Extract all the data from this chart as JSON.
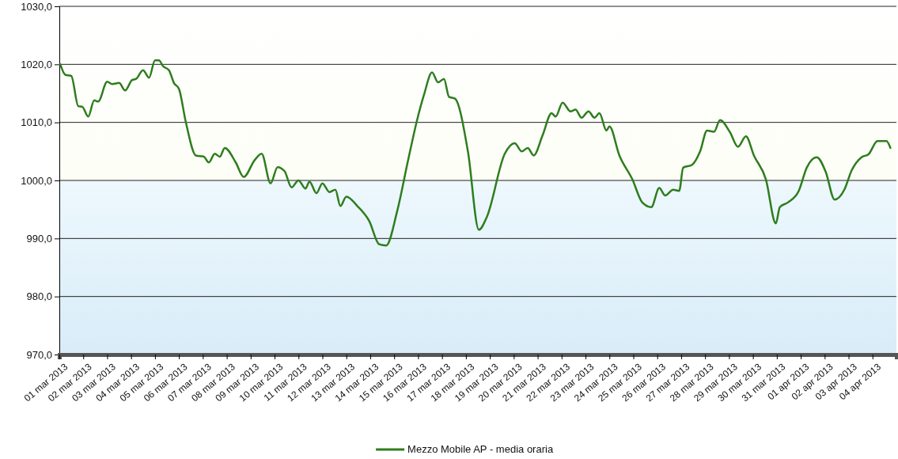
{
  "chart_data": {
    "type": "line",
    "legend": "bottom",
    "grid": "y",
    "xlim": [
      "2013-03-01T00:00",
      "2013-04-05T00:00"
    ],
    "ylim": [
      970,
      1030
    ],
    "yticks": [
      {
        "value": 970,
        "label": "970,0"
      },
      {
        "value": 980,
        "label": "980,0"
      },
      {
        "value": 990,
        "label": "990,0"
      },
      {
        "value": 1000,
        "label": "1000,0"
      },
      {
        "value": 1010,
        "label": "1010,0"
      },
      {
        "value": 1020,
        "label": "1020,0"
      },
      {
        "value": 1030,
        "label": "1030,0"
      }
    ],
    "xticks": [
      {
        "value": "2013-03-01",
        "label": "01 mar 2013"
      },
      {
        "value": "2013-03-02",
        "label": "02 mar 2013"
      },
      {
        "value": "2013-03-03",
        "label": "03 mar 2013"
      },
      {
        "value": "2013-03-04",
        "label": "04 mar 2013"
      },
      {
        "value": "2013-03-05",
        "label": "05 mar 2013"
      },
      {
        "value": "2013-03-06",
        "label": "06 mar 2013"
      },
      {
        "value": "2013-03-07",
        "label": "07 mar 2013"
      },
      {
        "value": "2013-03-08",
        "label": "08 mar 2013"
      },
      {
        "value": "2013-03-09",
        "label": "09 mar 2013"
      },
      {
        "value": "2013-03-10",
        "label": "10 mar 2013"
      },
      {
        "value": "2013-03-11",
        "label": "11 mar 2013"
      },
      {
        "value": "2013-03-12",
        "label": "12 mar 2013"
      },
      {
        "value": "2013-03-13",
        "label": "13 mar 2013"
      },
      {
        "value": "2013-03-14",
        "label": "14 mar 2013"
      },
      {
        "value": "2013-03-15",
        "label": "15 mar 2013"
      },
      {
        "value": "2013-03-16",
        "label": "16 mar 2013"
      },
      {
        "value": "2013-03-17",
        "label": "17 mar 2013"
      },
      {
        "value": "2013-03-18",
        "label": "18 mar 2013"
      },
      {
        "value": "2013-03-19",
        "label": "19 mar 2013"
      },
      {
        "value": "2013-03-20",
        "label": "20 mar 2013"
      },
      {
        "value": "2013-03-21",
        "label": "21 mar 2013"
      },
      {
        "value": "2013-03-22",
        "label": "22 mar 2013"
      },
      {
        "value": "2013-03-23",
        "label": "23 mar 2013"
      },
      {
        "value": "2013-03-24",
        "label": "24 mar 2013"
      },
      {
        "value": "2013-03-25",
        "label": "25 mar 2013"
      },
      {
        "value": "2013-03-26",
        "label": "26 mar 2013"
      },
      {
        "value": "2013-03-27",
        "label": "27 mar 2013"
      },
      {
        "value": "2013-03-28",
        "label": "28 mar 2013"
      },
      {
        "value": "2013-03-29",
        "label": "29 mar 2013"
      },
      {
        "value": "2013-03-30",
        "label": "30 mar 2013"
      },
      {
        "value": "2013-03-31",
        "label": "31 mar 2013"
      },
      {
        "value": "2013-04-01",
        "label": "01 apr 2013"
      },
      {
        "value": "2013-04-02",
        "label": "02 apr 2013"
      },
      {
        "value": "2013-04-03",
        "label": "03 apr 2013"
      },
      {
        "value": "2013-04-04",
        "label": "04 apr 2013"
      }
    ],
    "series": [
      {
        "name": "Mezzo Mobile AP - media oraria",
        "color": "#2e7d1e",
        "x": [
          "2013-03-01T01:00",
          "2013-03-01T06:00",
          "2013-03-01T12:00",
          "2013-03-01T19:00",
          "2013-03-01T23:00",
          "2013-03-02T05:00",
          "2013-03-02T11:00",
          "2013-03-02T15:00",
          "2013-03-03T00:00",
          "2013-03-03T05:00",
          "2013-03-03T12:00",
          "2013-03-03T18:00",
          "2013-03-04T01:00",
          "2013-03-04T05:00",
          "2013-03-04T12:00",
          "2013-03-04T18:00",
          "2013-03-05T00:00",
          "2013-03-05T04:00",
          "2013-03-05T08:00",
          "2013-03-05T14:00",
          "2013-03-05T19:00",
          "2013-03-06T00:00",
          "2013-03-06T07:00",
          "2013-03-06T17:00",
          "2013-03-07T01:00",
          "2013-03-07T06:00",
          "2013-03-07T12:00",
          "2013-03-07T17:00",
          "2013-03-07T22:00",
          "2013-03-08T09:00",
          "2013-03-08T17:00",
          "2013-03-09T04:00",
          "2013-03-09T11:00",
          "2013-03-09T20:00",
          "2013-03-10T03:00",
          "2013-03-10T10:00",
          "2013-03-10T17:00",
          "2013-03-11T00:00",
          "2013-03-11T07:00",
          "2013-03-11T11:00",
          "2013-03-11T18:00",
          "2013-03-12T00:00",
          "2013-03-12T07:00",
          "2013-03-12T13:00",
          "2013-03-12T18:00",
          "2013-03-13T00:00",
          "2013-03-13T11:00",
          "2013-03-13T23:00",
          "2013-03-14T09:00",
          "2013-03-14T16:00",
          "2013-03-15T03:00",
          "2013-03-15T14:00",
          "2013-03-15T23:00",
          "2013-03-16T06:00",
          "2013-03-16T14:00",
          "2013-03-16T20:00",
          "2013-03-17T02:00",
          "2013-03-17T07:00",
          "2013-03-17T13:00",
          "2013-03-18T02:00",
          "2013-03-18T13:00",
          "2013-03-18T21:00",
          "2013-03-19T15:00",
          "2013-03-20T01:00",
          "2013-03-20T08:00",
          "2013-03-20T14:00",
          "2013-03-20T20:00",
          "2013-03-21T05:00",
          "2013-03-21T14:00",
          "2013-03-21T18:00",
          "2013-03-22T01:00",
          "2013-03-22T09:00",
          "2013-03-22T14:00",
          "2013-03-22T20:00",
          "2013-03-23T03:00",
          "2013-03-23T09:00",
          "2013-03-23T14:00",
          "2013-03-23T21:00",
          "2013-03-24T00:00",
          "2013-03-24T10:00",
          "2013-03-24T23:00",
          "2013-03-25T09:00",
          "2013-03-25T18:00",
          "2013-03-26T02:00",
          "2013-03-26T08:00",
          "2013-03-26T16:00",
          "2013-03-26T22:00",
          "2013-03-27T02:00",
          "2013-03-27T11:00",
          "2013-03-27T19:00",
          "2013-03-28T02:00",
          "2013-03-28T09:00",
          "2013-03-28T15:00",
          "2013-03-29T01:00",
          "2013-03-29T09:00",
          "2013-03-29T17:00",
          "2013-03-30T01:00",
          "2013-03-30T13:00",
          "2013-03-30T23:00",
          "2013-03-31T03:00",
          "2013-03-31T11:00",
          "2013-03-31T22:00",
          "2013-04-01T06:00",
          "2013-04-01T16:00",
          "2013-04-02T01:00",
          "2013-04-02T10:00",
          "2013-04-02T20:00",
          "2013-04-03T03:00",
          "2013-04-03T13:00",
          "2013-04-03T20:00",
          "2013-04-04T05:00",
          "2013-04-04T14:00",
          "2013-04-04T18:00"
        ],
        "values": [
          1020.0,
          1018.2,
          1018.0,
          1012.8,
          1012.7,
          1011.0,
          1013.8,
          1013.6,
          1017.0,
          1016.6,
          1016.8,
          1015.5,
          1017.3,
          1017.5,
          1019.0,
          1017.7,
          1020.7,
          1020.7,
          1019.7,
          1019.0,
          1016.8,
          1015.8,
          1010.0,
          1004.3,
          1004.1,
          1003.1,
          1004.6,
          1004.1,
          1005.6,
          1003.1,
          1000.6,
          1003.5,
          1004.6,
          999.5,
          1002.3,
          1001.6,
          998.8,
          1000.0,
          998.6,
          999.8,
          997.8,
          999.5,
          998.0,
          998.4,
          995.6,
          997.2,
          995.6,
          993.0,
          989.0,
          988.8,
          994.7,
          1003.5,
          1010.4,
          1014.8,
          1018.6,
          1016.9,
          1017.5,
          1014.4,
          1014.1,
          1005.0,
          991.5,
          993.7,
          1004.6,
          1006.4,
          1005.0,
          1005.6,
          1004.3,
          1007.8,
          1011.6,
          1011.0,
          1013.4,
          1011.9,
          1012.2,
          1010.8,
          1011.9,
          1010.8,
          1011.6,
          1008.6,
          1009.3,
          1004.3,
          1000.2,
          996.2,
          995.4,
          998.7,
          997.4,
          998.4,
          998.2,
          1002.2,
          1002.7,
          1005.0,
          1008.6,
          1008.4,
          1010.4,
          1008.3,
          1005.8,
          1007.6,
          1004.3,
          1000.2,
          992.6,
          995.4,
          996.2,
          998.2,
          1002.2,
          1004.0,
          1001.5,
          996.7,
          998.5,
          1001.7,
          1004.0,
          1004.5,
          1006.8,
          1006.8,
          1005.6
        ]
      }
    ]
  }
}
